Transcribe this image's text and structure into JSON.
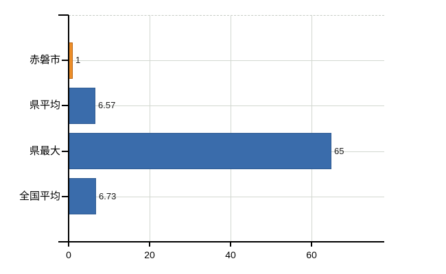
{
  "chart_data": {
    "type": "bar",
    "orientation": "horizontal",
    "title": "",
    "xlabel": "",
    "ylabel": "",
    "categories": [
      "赤磐市",
      "県平均",
      "県最大",
      "全国平均"
    ],
    "values": [
      1,
      6.57,
      65,
      6.73
    ],
    "value_labels": [
      "1",
      "6.57",
      "65",
      "6.73"
    ],
    "bar_colors": [
      "#EE8F2A",
      "#3A6CAB",
      "#3A6CAB",
      "#3A6CAB"
    ],
    "bar_border_colors": [
      "#BC6410",
      "#2F5B93",
      "#2F5B93",
      "#2F5B93"
    ],
    "xlim": [
      0,
      78
    ],
    "xticks": [
      0,
      20,
      40,
      60
    ],
    "grid": true,
    "legend": "none",
    "axis_color": "#000000",
    "grid_color": "#d2d7d0",
    "top_border_color": "#c6cbc4",
    "background_color": "#ffffff"
  }
}
